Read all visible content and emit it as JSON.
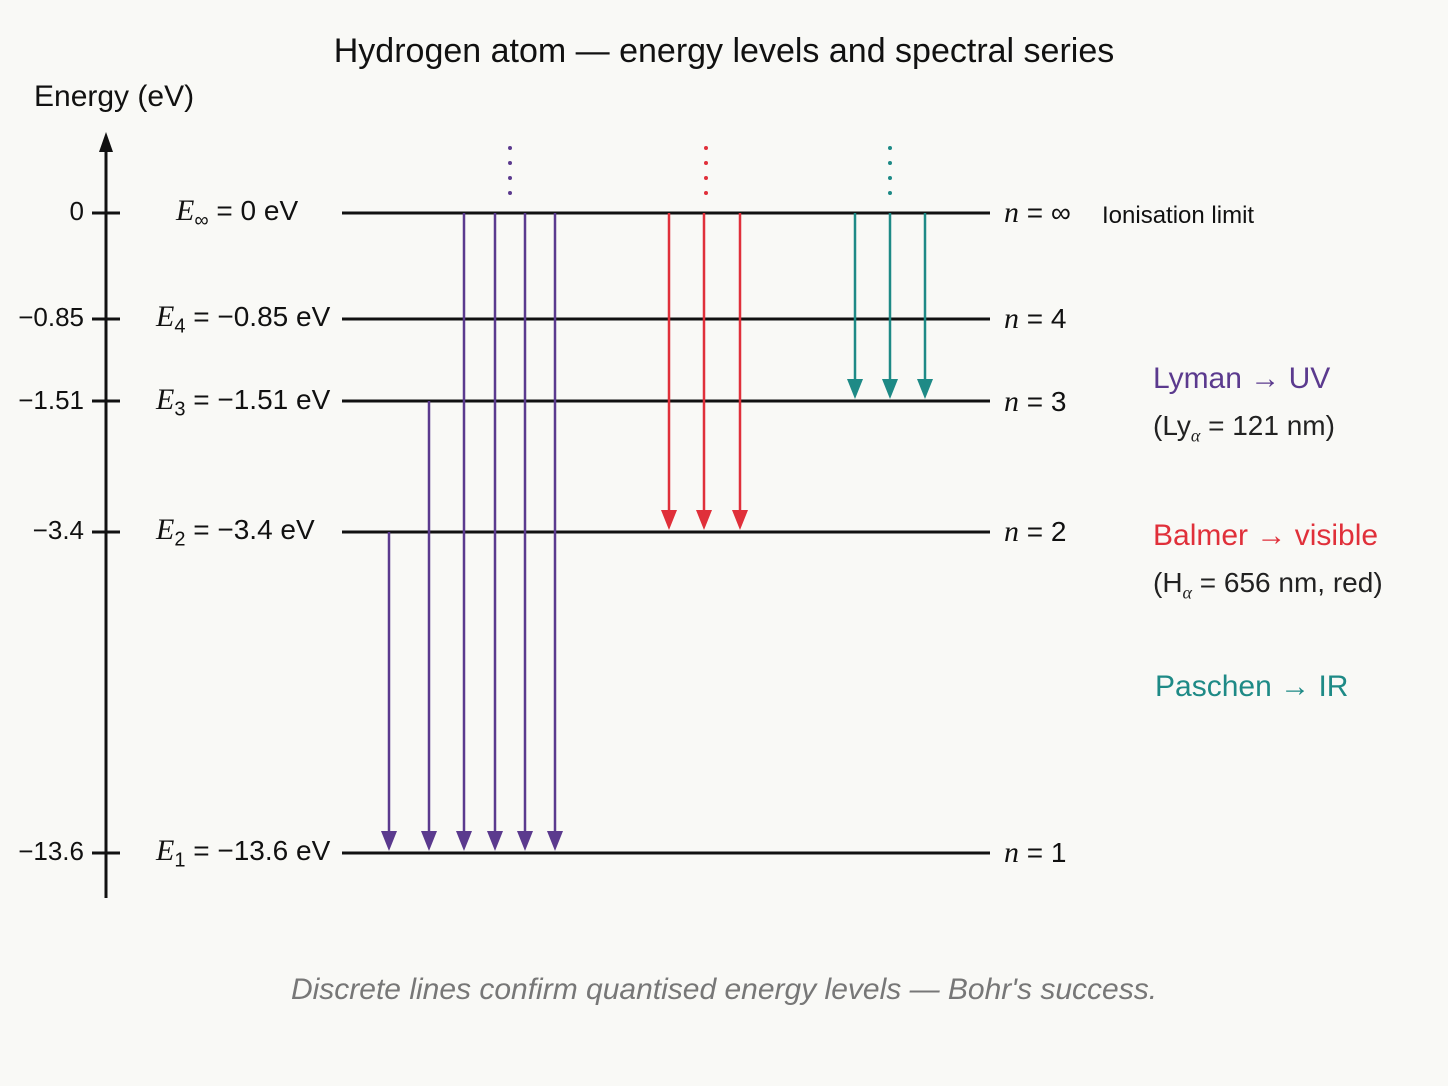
{
  "title": "Hydrogen atom — energy levels and spectral series",
  "y_axis_label": "Energy (eV)",
  "caption": "Discrete lines confirm quantised energy levels — Bohr's success.",
  "ionisation_label": "Ionisation limit",
  "levels": [
    {
      "n_text": "∞",
      "energy_text": "0 eV",
      "tick": "0",
      "sub": "∞",
      "value": 0
    },
    {
      "n_text": "4",
      "energy_text": "−0.85 eV",
      "tick": "−0.85",
      "sub": "4",
      "value": -0.85
    },
    {
      "n_text": "3",
      "energy_text": "−1.51 eV",
      "tick": "−1.51",
      "sub": "3",
      "value": -1.51
    },
    {
      "n_text": "2",
      "energy_text": "−3.4 eV",
      "tick": "−3.4",
      "sub": "2",
      "value": -3.4
    },
    {
      "n_text": "1",
      "energy_text": "−13.6 eV",
      "tick": "−13.6",
      "sub": "1",
      "value": -13.6
    }
  ],
  "series": [
    {
      "name": "Lyman",
      "arrow_text": "→",
      "region": "UV",
      "color": "#5b3a8e",
      "note_prefix": "(Ly",
      "note_sub": "α",
      "note_rest": " = 121 nm)",
      "transitions_from": [
        "2",
        "3",
        "∞",
        "∞",
        "∞",
        "∞"
      ],
      "to": "1"
    },
    {
      "name": "Balmer",
      "arrow_text": "→",
      "region": "visible",
      "color": "#e0303a",
      "note_prefix": "(H",
      "note_sub": "α",
      "note_rest": " = 656 nm, red)",
      "transitions_from": [
        "∞",
        "∞",
        "∞"
      ],
      "to": "2"
    },
    {
      "name": "Paschen",
      "arrow_text": "→",
      "region": "IR",
      "color": "#1e8a86",
      "note_prefix": "",
      "note_sub": "",
      "note_rest": "",
      "transitions_from": [
        "∞",
        "∞",
        "∞"
      ],
      "to": "3"
    }
  ],
  "colors": {
    "axis": "#111111",
    "lyman": "#5b3a8e",
    "balmer": "#e0303a",
    "paschen": "#1e8a86"
  }
}
